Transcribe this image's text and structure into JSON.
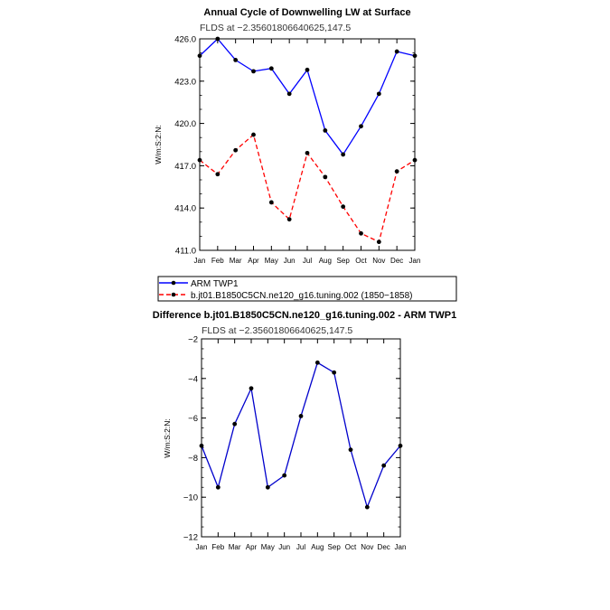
{
  "chart_data": [
    {
      "type": "line",
      "title": "Annual Cycle of Downwelling LW at Surface",
      "subtitle": "FLDS at −2.35601806640625,147.5",
      "xlabel": "",
      "ylabel": "W/m:S:2:N:",
      "categories": [
        "Jan",
        "Feb",
        "Mar",
        "Apr",
        "May",
        "Jun",
        "Jul",
        "Aug",
        "Sep",
        "Oct",
        "Nov",
        "Dec",
        "Jan"
      ],
      "yticks": [
        "426.0",
        "423.0",
        "420.0",
        "417.0",
        "414.0",
        "411.0"
      ],
      "ytick_values": [
        426,
        423,
        420,
        417,
        414,
        411
      ],
      "ylim": [
        411,
        426
      ],
      "series": [
        {
          "name": "ARM TWP1",
          "color": "#0000ff",
          "dash": "solid",
          "values": [
            424.8,
            426.0,
            424.5,
            423.7,
            423.9,
            422.1,
            423.8,
            419.5,
            417.8,
            419.8,
            422.1,
            425.1,
            424.8
          ]
        },
        {
          "name": "b.jt01.B1850C5CN.ne120_g16.tuning.002 (1850−1858)",
          "color": "#ff0000",
          "dash": "dashed",
          "values": [
            417.4,
            416.4,
            418.1,
            419.2,
            414.4,
            413.2,
            417.9,
            416.2,
            414.1,
            412.2,
            411.6,
            416.6,
            417.4
          ]
        }
      ]
    },
    {
      "type": "line",
      "title": "Difference b.jt01.B1850C5CN.ne120_g16.tuning.002 - ARM TWP1",
      "subtitle": "FLDS at −2.35601806640625,147.5",
      "xlabel": "",
      "ylabel": "W/m:S:2:N:",
      "categories": [
        "Jan",
        "Feb",
        "Mar",
        "Apr",
        "May",
        "Jun",
        "Jul",
        "Aug",
        "Sep",
        "Oct",
        "Nov",
        "Dec",
        "Jan"
      ],
      "yticks": [
        "−2",
        "−4",
        "−6",
        "−8",
        "−10",
        "−12"
      ],
      "ytick_values": [
        -2,
        -4,
        -6,
        -8,
        -10,
        -12
      ],
      "ylim": [
        -12,
        -2
      ],
      "series": [
        {
          "name": "Difference",
          "color": "#0000cc",
          "dash": "solid",
          "values": [
            -7.4,
            -9.5,
            -6.3,
            -4.5,
            -9.5,
            -8.9,
            -5.9,
            -3.2,
            -3.7,
            -7.6,
            -10.5,
            -8.4,
            -7.4
          ]
        }
      ]
    }
  ]
}
